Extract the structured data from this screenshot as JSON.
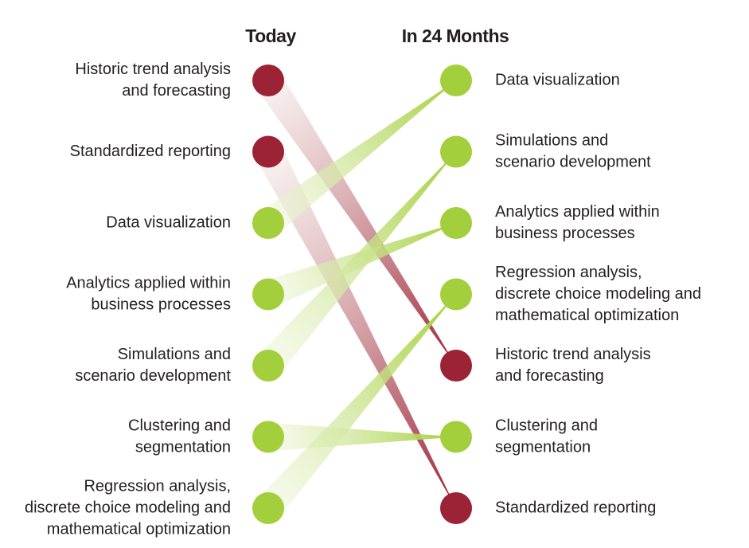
{
  "header": {
    "left": "Today",
    "right": "In 24 Months"
  },
  "left": {
    "items": [
      {
        "lines": [
          "Historic trend analysis",
          "and forecasting"
        ]
      },
      {
        "lines": [
          "Standardized reporting"
        ]
      },
      {
        "lines": [
          "Data visualization"
        ]
      },
      {
        "lines": [
          "Analytics applied within",
          "business processes"
        ]
      },
      {
        "lines": [
          "Simulations and",
          "scenario development"
        ]
      },
      {
        "lines": [
          "Clustering and",
          "segmentation"
        ]
      },
      {
        "lines": [
          "Regression analysis,",
          "discrete choice modeling and",
          "mathematical optimization"
        ]
      }
    ]
  },
  "right": {
    "items": [
      {
        "lines": [
          "Data visualization"
        ]
      },
      {
        "lines": [
          "Simulations and",
          "scenario development"
        ]
      },
      {
        "lines": [
          "Analytics applied within",
          "business processes"
        ]
      },
      {
        "lines": [
          "Regression analysis,",
          "discrete choice modeling and",
          "mathematical optimization"
        ]
      },
      {
        "lines": [
          "Historic trend analysis",
          "and forecasting"
        ]
      },
      {
        "lines": [
          "Clustering and",
          "segmentation"
        ]
      },
      {
        "lines": [
          "Standardized reporting"
        ]
      }
    ]
  }
}
